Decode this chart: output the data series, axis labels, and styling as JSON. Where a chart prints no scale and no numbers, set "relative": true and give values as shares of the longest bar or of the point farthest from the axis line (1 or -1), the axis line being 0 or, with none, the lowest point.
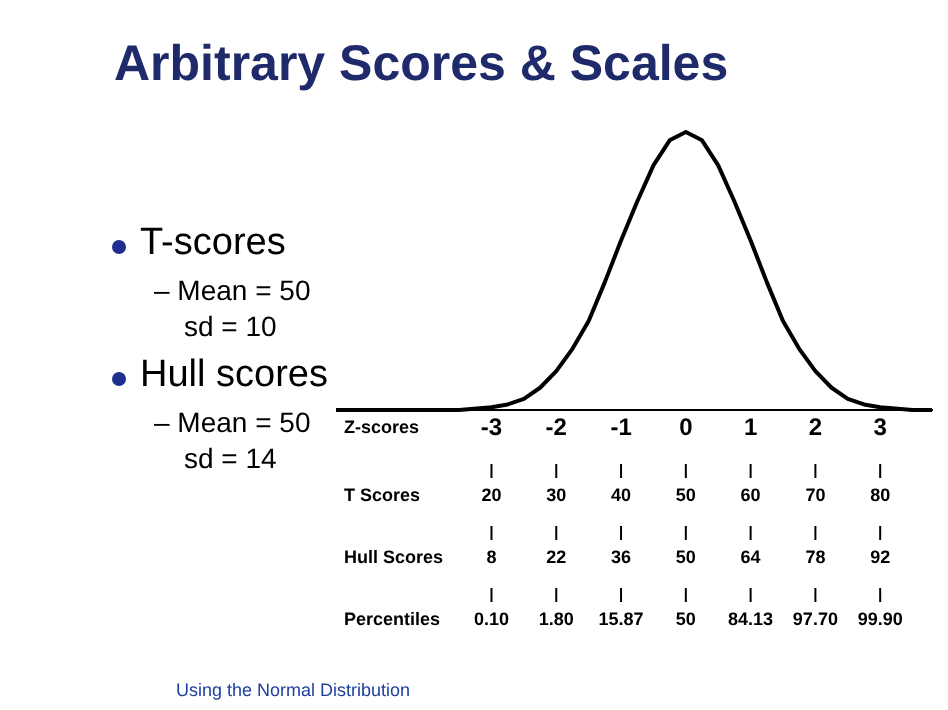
{
  "chart_data": {
    "type": "line",
    "title": "Arbitrary Scores & Scales",
    "relative": true,
    "marker": "none",
    "color": "#000000",
    "x": [
      -5.4,
      -4.5,
      -4,
      -3.5,
      -3,
      -2.75,
      -2.5,
      -2.25,
      -2,
      -1.75,
      -1.5,
      -1.25,
      -1,
      -0.75,
      -0.5,
      -0.25,
      0,
      0.25,
      0.5,
      0.75,
      1,
      1.25,
      1.5,
      1.75,
      2,
      2.25,
      2.5,
      2.75,
      3,
      3.5,
      3.8
    ],
    "values": [
      0,
      0,
      0,
      0,
      0.01,
      0.02,
      0.04,
      0.08,
      0.14,
      0.22,
      0.32,
      0.46,
      0.61,
      0.75,
      0.88,
      0.97,
      1,
      0.97,
      0.88,
      0.75,
      0.61,
      0.46,
      0.32,
      0.22,
      0.14,
      0.08,
      0.04,
      0.02,
      0.01,
      0,
      0
    ],
    "xlim": [
      -5.4,
      3.8
    ],
    "xticks": [
      -3,
      -2,
      -1,
      0,
      1,
      2,
      3
    ],
    "xlabel": "Z-scores",
    "annotations": [
      "T-scores",
      "– Mean = 50",
      "sd = 10",
      "Hull scores",
      "– Mean = 50",
      "sd = 14",
      "Using the Normal Distribution",
      "T Scores",
      "20",
      "30",
      "40",
      "50",
      "60",
      "70",
      "80",
      "Hull Scores",
      "8",
      "22",
      "36",
      "50",
      "64",
      "78",
      "92",
      "Percentiles",
      "0.10",
      "1.80",
      "15.87",
      "50",
      "84.13",
      "97.70",
      "99.90"
    ]
  }
}
